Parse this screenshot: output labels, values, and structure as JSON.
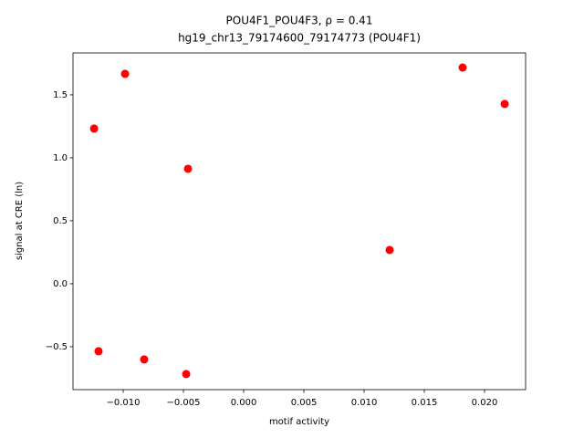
{
  "chart_data": {
    "type": "scatter",
    "title": "POU4F1_POU4F3, ρ = 0.41",
    "subtitle": "hg19_chr13_79174600_79174773 (POU4F1)",
    "x_label": "motif activity",
    "y_label": "signal at CRE (ln)",
    "color": "#ff0000",
    "x": [
      -0.01242,
      -0.00985,
      -0.00462,
      -0.01205,
      -0.00826,
      -0.00477,
      0.01212,
      0.01818,
      0.02167
    ],
    "y": [
      1.232,
      1.667,
      0.913,
      -0.536,
      -0.601,
      -0.717,
      0.268,
      1.717,
      1.428
    ],
    "xlim": [
      -0.01417,
      0.02341
    ],
    "ylim": [
      -0.841,
      1.833
    ],
    "xticks": [
      {
        "value": -0.01,
        "label": "−0.010"
      },
      {
        "value": -0.005,
        "label": "−0.005"
      },
      {
        "value": 0,
        "label": "0.000"
      },
      0.005,
      {
        "value": 0.01,
        "label": "0.010"
      },
      0.015,
      {
        "value": 0.02,
        "label": "0.020"
      }
    ],
    "yticks": [
      {
        "value": -0.5,
        "label": "−0.5"
      },
      {
        "value": 0,
        "label": "0.0"
      },
      0.5,
      {
        "value": 1,
        "label": "1.0"
      },
      1.5
    ]
  }
}
